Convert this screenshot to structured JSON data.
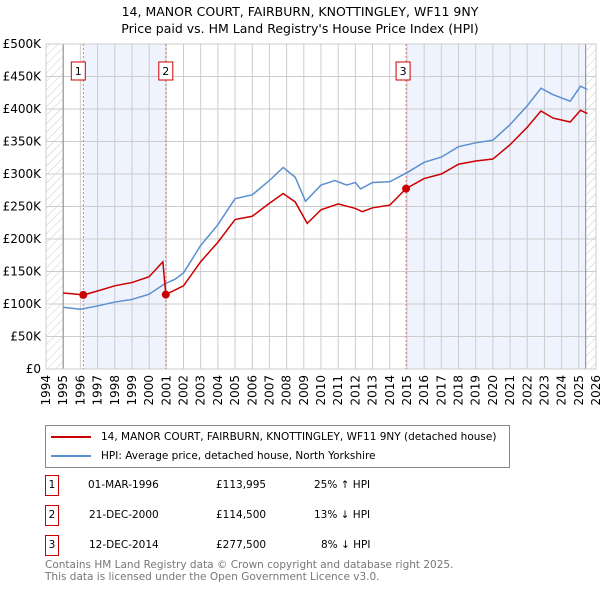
{
  "title": "14, MANOR COURT, FAIRBURN, KNOTTINGLEY, WF11 9NY",
  "subtitle": "Price paid vs. HM Land Registry's House Price Index (HPI)",
  "chart_data": {
    "type": "line",
    "title": "14, MANOR COURT, FAIRBURN, KNOTTINGLEY, WF11 9NY",
    "subtitle": "Price paid vs. HM Land Registry's House Price Index (HPI)",
    "xlim": [
      1994,
      2026
    ],
    "ylim": [
      0,
      500000
    ],
    "x_ticks": [
      "1994",
      "1995",
      "1996",
      "1997",
      "1998",
      "1999",
      "2000",
      "2001",
      "2002",
      "2003",
      "2004",
      "2005",
      "2006",
      "2007",
      "2008",
      "2009",
      "2010",
      "2011",
      "2012",
      "2013",
      "2014",
      "2015",
      "2016",
      "2017",
      "2018",
      "2019",
      "2020",
      "2021",
      "2022",
      "2023",
      "2024",
      "2025",
      "2026"
    ],
    "y_ticks": [
      "£0",
      "£50K",
      "£100K",
      "£150K",
      "£200K",
      "£250K",
      "£300K",
      "£350K",
      "£400K",
      "£450K",
      "£500K"
    ],
    "grid": true,
    "series": [
      {
        "name": "14, MANOR COURT, FAIRBURN, KNOTTINGLEY, WF11 9NY (detached house)",
        "color": "#cc0000",
        "x": [
          1995,
          1996.2,
          1997,
          1998,
          1999,
          2000,
          2000.8,
          2000.97,
          2002,
          2003,
          2004,
          2005,
          2006,
          2007,
          2007.8,
          2008.5,
          2009.2,
          2010,
          2011,
          2012,
          2012.4,
          2013,
          2014,
          2014.95,
          2016,
          2017,
          2018,
          2019,
          2020,
          2021,
          2022,
          2022.8,
          2023.5,
          2024.5,
          2025.1,
          2025.5
        ],
        "y": [
          117000,
          114000,
          120000,
          128000,
          133000,
          142000,
          165000,
          114500,
          128000,
          165000,
          195000,
          230000,
          235000,
          255000,
          270000,
          257000,
          224000,
          245000,
          254000,
          247000,
          242000,
          248000,
          252000,
          277500,
          293000,
          300000,
          315000,
          320000,
          323000,
          345000,
          372000,
          397000,
          386000,
          380000,
          398000,
          393000
        ]
      },
      {
        "name": "HPI: Average price, detached house, North Yorkshire",
        "color": "#5b8fd0",
        "x": [
          1995,
          1996,
          1997,
          1998,
          1999,
          2000,
          2000.9,
          2001.5,
          2002,
          2003,
          2004,
          2005,
          2006,
          2007,
          2007.8,
          2008.5,
          2009.1,
          2010,
          2010.8,
          2011.5,
          2012,
          2012.3,
          2013,
          2014,
          2015,
          2016,
          2017,
          2018,
          2019,
          2020,
          2021,
          2022,
          2022.8,
          2023.5,
          2024.5,
          2025.1,
          2025.5
        ],
        "y": [
          95000,
          92000,
          97000,
          103000,
          107000,
          115000,
          131000,
          138000,
          148000,
          190000,
          222000,
          262000,
          268000,
          290000,
          310000,
          295000,
          258000,
          283000,
          290000,
          283000,
          287000,
          277000,
          287000,
          288000,
          302000,
          318000,
          326000,
          342000,
          348000,
          352000,
          376000,
          405000,
          432000,
          422000,
          412000,
          435000,
          430000
        ]
      }
    ],
    "sales": [
      {
        "n": "1",
        "x": 1996.17,
        "y": 113995,
        "date": "01-MAR-1996",
        "price": "£113,995",
        "hpi": "25% ↑ HPI"
      },
      {
        "n": "2",
        "x": 2000.97,
        "y": 114500,
        "date": "21-DEC-2000",
        "price": "£114,500",
        "hpi": "13% ↓ HPI"
      },
      {
        "n": "3",
        "x": 2014.95,
        "y": 277500,
        "date": "12-DEC-2014",
        "price": "£277,500",
        "hpi": "8% ↓ HPI"
      }
    ]
  },
  "footer": [
    "Contains HM Land Registry data © Crown copyright and database right 2025.",
    "This data is licensed under the Open Government Licence v3.0."
  ]
}
